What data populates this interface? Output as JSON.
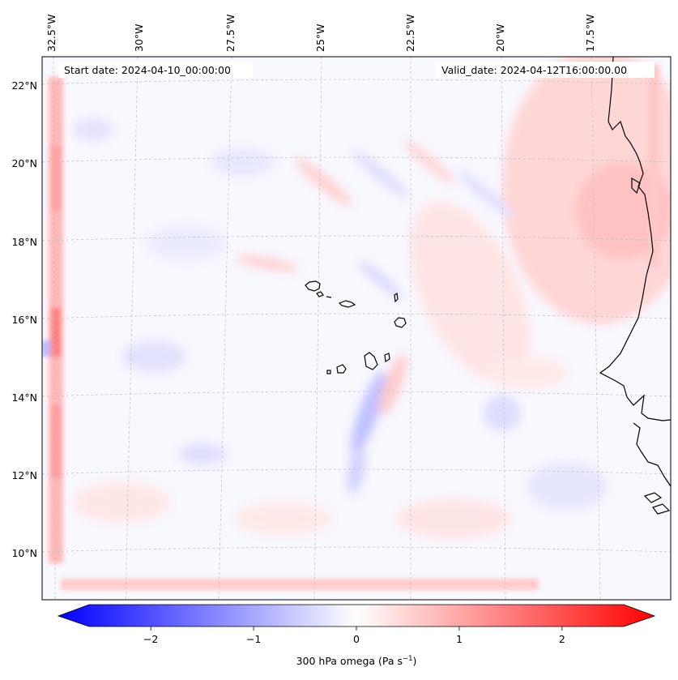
{
  "chart_data": {
    "type": "heatmap",
    "title": "",
    "variable_label": "300 hPa omega (Pa s",
    "unit_superscript": "−1",
    "unit_close": ")",
    "annotations": {
      "start_date": "Start date: 2024-04-10_00:00:00",
      "valid_date": "Valid_date: 2024-04-12T16:00:00.00"
    },
    "lon_ticks": [
      {
        "value": -32.5,
        "label": "32.5°W"
      },
      {
        "value": -30.0,
        "label": "30°W"
      },
      {
        "value": -27.5,
        "label": "27.5°W"
      },
      {
        "value": -25.0,
        "label": "25°W"
      },
      {
        "value": -22.5,
        "label": "22.5°W"
      },
      {
        "value": -20.0,
        "label": "20°W"
      },
      {
        "value": -17.5,
        "label": "17.5°W"
      }
    ],
    "lat_ticks": [
      {
        "value": 22,
        "label": "22°N"
      },
      {
        "value": 20,
        "label": "20°N"
      },
      {
        "value": 18,
        "label": "18°N"
      },
      {
        "value": 16,
        "label": "16°N"
      },
      {
        "value": 14,
        "label": "14°N"
      },
      {
        "value": 12,
        "label": "12°N"
      },
      {
        "value": 10,
        "label": "10°N"
      }
    ],
    "lon_range": [
      -33.0,
      -15.5
    ],
    "lat_range": [
      8.9,
      22.8
    ],
    "colorbar": {
      "colormap": "bwr",
      "vmin": -2.6,
      "vmax": 2.6,
      "extend": "both",
      "ticks": [
        {
          "value": -2,
          "label": "−2"
        },
        {
          "value": -1,
          "label": "−1"
        },
        {
          "value": 0,
          "label": "0"
        },
        {
          "value": 1,
          "label": "1"
        },
        {
          "value": 2,
          "label": "2"
        }
      ]
    },
    "features": [
      {
        "name": "boundary-positive-band-west",
        "kind": "band",
        "lon": -32.4,
        "lat_range": [
          9,
          22.5
        ],
        "value": 0.8
      },
      {
        "name": "boundary-positive-band-south",
        "kind": "band",
        "lat": 9.3,
        "lon_range": [
          -32,
          -19
        ],
        "value": 0.5
      },
      {
        "name": "positive-region-northeast",
        "kind": "blob",
        "lon": -17.2,
        "lat": 19.0,
        "value": 0.5
      },
      {
        "name": "negative-streak-south-of-islands",
        "kind": "streak",
        "lon": -23.6,
        "lat": 13.3,
        "value": -0.5
      },
      {
        "name": "positive-streak-east-of-islands",
        "kind": "streak",
        "lon": -22.8,
        "lat": 15.0,
        "value": 0.4
      }
    ],
    "coastlines": [
      "Cape Verde Islands",
      "West African coast"
    ]
  }
}
